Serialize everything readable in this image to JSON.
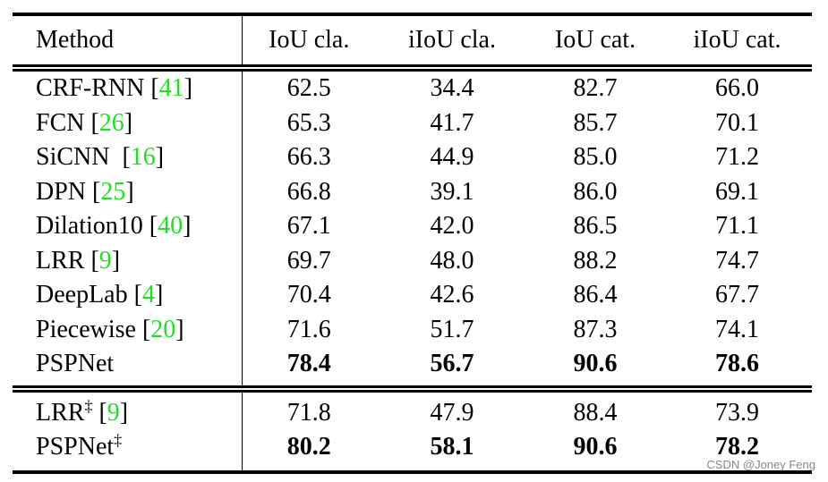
{
  "table": {
    "header": [
      "Method",
      "IoU cla.",
      "iIoU cla.",
      "IoU cat.",
      "iIoU cat."
    ],
    "groups": [
      [
        {
          "method": "CRF-RNN [41]",
          "values": [
            "62.5",
            "34.4",
            "82.7",
            "66.0"
          ]
        },
        {
          "method": "FCN [26]",
          "values": [
            "65.3",
            "41.7",
            "85.7",
            "70.1"
          ]
        },
        {
          "method": "SiCNN  [16]",
          "values": [
            "66.3",
            "44.9",
            "85.0",
            "71.2"
          ]
        },
        {
          "method": "DPN [25]",
          "values": [
            "66.8",
            "39.1",
            "86.0",
            "69.1"
          ]
        },
        {
          "method": "Dilation10 [40]",
          "values": [
            "67.1",
            "42.0",
            "86.5",
            "71.1"
          ]
        },
        {
          "method": "LRR [9]",
          "values": [
            "69.7",
            "48.0",
            "88.2",
            "74.7"
          ]
        },
        {
          "method": "DeepLab [4]",
          "values": [
            "70.4",
            "42.6",
            "86.4",
            "67.7"
          ]
        },
        {
          "method": "Piecewise [20]",
          "values": [
            "71.6",
            "51.7",
            "87.3",
            "74.1"
          ]
        },
        {
          "method": "PSPNet",
          "values": [
            "78.4",
            "56.7",
            "90.6",
            "78.6"
          ],
          "bold": true
        }
      ],
      [
        {
          "method": "LRR‡ [9]",
          "values": [
            "71.8",
            "47.9",
            "88.4",
            "73.9"
          ]
        },
        {
          "method": "PSPNet‡",
          "values": [
            "80.2",
            "58.1",
            "90.6",
            "78.2"
          ],
          "bold": true
        }
      ]
    ]
  },
  "watermark": "CSDN @Joney Feng"
}
